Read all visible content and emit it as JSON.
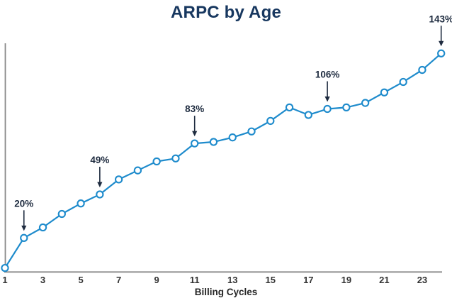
{
  "page": {
    "title": "ARPC by Age"
  },
  "colors": {
    "line": "#1e8bcc",
    "marker_fill": "#ffffff",
    "title": "#17375f",
    "annotation": "#1e2b3f",
    "axis": "#8a8a8a",
    "tick": "#333333"
  },
  "chart_data": {
    "type": "line",
    "title": "ARPC by Age",
    "xlabel": "Billing Cycles",
    "ylabel": "",
    "x": [
      1,
      2,
      3,
      4,
      5,
      6,
      7,
      8,
      9,
      10,
      11,
      12,
      13,
      14,
      15,
      16,
      17,
      18,
      19,
      20,
      21,
      22,
      23,
      24
    ],
    "values": [
      0,
      20,
      27,
      36,
      43,
      49,
      59,
      65,
      71,
      73,
      83,
      84,
      87,
      91,
      98,
      107,
      102,
      106,
      107,
      110,
      117,
      124,
      132,
      143
    ],
    "x_ticks": [
      1,
      3,
      5,
      7,
      9,
      11,
      13,
      15,
      17,
      19,
      21,
      23
    ],
    "ylim": [
      0,
      150
    ],
    "grid": false,
    "legend": false,
    "marker": "open-circle",
    "annotations": [
      {
        "x": 2,
        "label": "20%"
      },
      {
        "x": 6,
        "label": "49%"
      },
      {
        "x": 11,
        "label": "83%"
      },
      {
        "x": 18,
        "label": "106%"
      },
      {
        "x": 24,
        "label": "143%"
      }
    ]
  }
}
